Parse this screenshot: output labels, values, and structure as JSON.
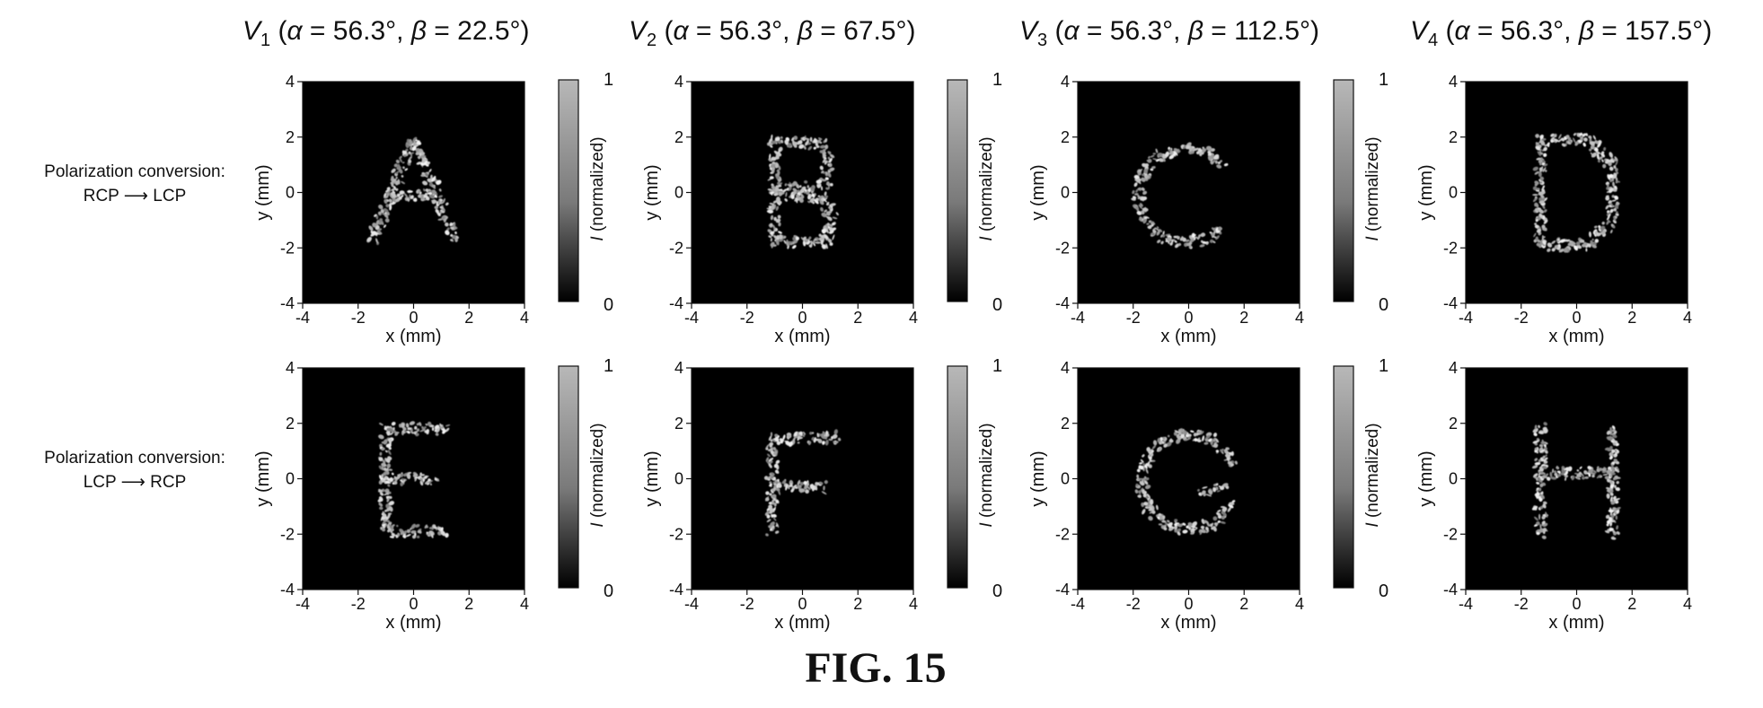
{
  "figure": {
    "caption": "FIG. 15",
    "columns": [
      {
        "v": "V",
        "sub": "1",
        "rest": " (",
        "a": "α",
        "aeq": " = 56.3°, ",
        "b": "β",
        "beq": "  = 22.5°)"
      },
      {
        "v": "V",
        "sub": "2",
        "rest": " (",
        "a": "α",
        "aeq": " = 56.3°, ",
        "b": "β",
        "beq": "  = 67.5°)"
      },
      {
        "v": "V",
        "sub": "3",
        "rest": " (",
        "a": "α",
        "aeq": " = 56.3°, ",
        "b": "β",
        "beq": "  = 112.5°)"
      },
      {
        "v": "V",
        "sub": "4",
        "rest": " (",
        "a": "α",
        "aeq": " = 56.3°, ",
        "b": "β",
        "beq": "  = 157.5°)"
      }
    ],
    "rows": [
      {
        "line1": "Polarization conversion:",
        "line2": "RCP ⟶ LCP"
      },
      {
        "line1": "Polarization conversion:",
        "line2": "LCP ⟶ RCP"
      }
    ],
    "xlabel": "x (mm)",
    "ylabel": "y (mm)",
    "ticks": [
      "-4",
      "-2",
      "0",
      "2",
      "4"
    ],
    "colorbar": {
      "label_italic": "I",
      "label_rest": " (normalized)",
      "max": "1",
      "min": "0"
    }
  },
  "chart_data": [
    {
      "type": "heatmap",
      "letter": "A",
      "xlim": [
        -4,
        4
      ],
      "ylim": [
        -4,
        4
      ],
      "colorbar": [
        0,
        1
      ]
    },
    {
      "type": "heatmap",
      "letter": "B",
      "xlim": [
        -4,
        4
      ],
      "ylim": [
        -4,
        4
      ],
      "colorbar": [
        0,
        1
      ]
    },
    {
      "type": "heatmap",
      "letter": "C",
      "xlim": [
        -4,
        4
      ],
      "ylim": [
        -4,
        4
      ],
      "colorbar": [
        0,
        1
      ]
    },
    {
      "type": "heatmap",
      "letter": "D",
      "xlim": [
        -4,
        4
      ],
      "ylim": [
        -4,
        4
      ],
      "colorbar": null
    },
    {
      "type": "heatmap",
      "letter": "E",
      "xlim": [
        -4,
        4
      ],
      "ylim": [
        -4,
        4
      ],
      "colorbar": [
        0,
        1
      ]
    },
    {
      "type": "heatmap",
      "letter": "F",
      "xlim": [
        -4,
        4
      ],
      "ylim": [
        -4,
        4
      ],
      "colorbar": [
        0,
        1
      ]
    },
    {
      "type": "heatmap",
      "letter": "G",
      "xlim": [
        -4,
        4
      ],
      "ylim": [
        -4,
        4
      ],
      "colorbar": [
        0,
        1
      ]
    },
    {
      "type": "heatmap",
      "letter": "H",
      "xlim": [
        -4,
        4
      ],
      "ylim": [
        -4,
        4
      ],
      "colorbar": null
    }
  ]
}
